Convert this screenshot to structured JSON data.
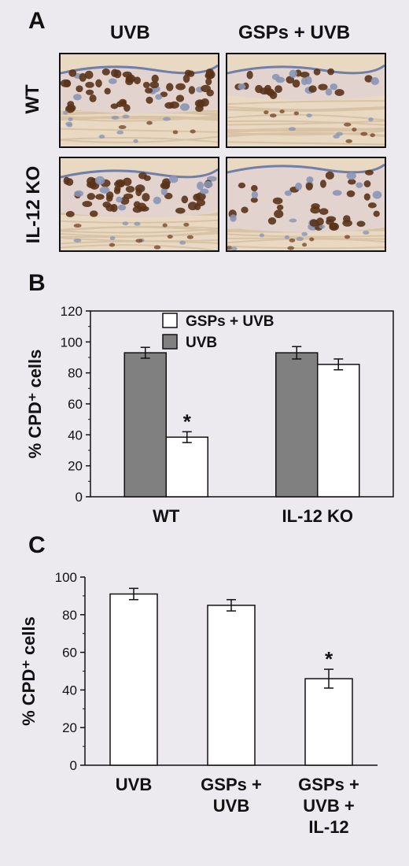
{
  "panel_a": {
    "letter": "A",
    "col_headers": [
      "UVB",
      "GSPs + UVB"
    ],
    "row_headers": [
      "WT",
      "IL-12 KO"
    ]
  },
  "panel_b": {
    "letter": "B"
  },
  "panel_c": {
    "letter": "C"
  },
  "colors": {
    "uvb_bar": "#808080",
    "gsp_bar": "#ffffff",
    "stroke": "#111111",
    "tissue": "#e9d9c2",
    "nucleus_dark": "#5a3318",
    "nucleus_light": "#8a95b5"
  },
  "chart_data": [
    {
      "type": "bar",
      "ylabel": "% CPD⁺ cells",
      "ylim": [
        0,
        120
      ],
      "yticks": [
        0,
        20,
        40,
        60,
        80,
        100,
        120
      ],
      "categories": [
        "WT",
        "IL-12 KO"
      ],
      "legend": {
        "placement": "top-center"
      },
      "series": [
        {
          "name": "UVB",
          "color": "#808080",
          "values": [
            93,
            93
          ],
          "errors": [
            3.5,
            4
          ]
        },
        {
          "name": "GSPs + UVB",
          "color": "#ffffff",
          "values": [
            38.5,
            85.5
          ],
          "errors": [
            3.5,
            3.5
          ]
        }
      ],
      "annotations": [
        {
          "text": "*",
          "category": "WT",
          "series": "GSPs + UVB"
        }
      ]
    },
    {
      "type": "bar",
      "ylabel": "% CPD⁺ cells",
      "ylim": [
        0,
        100
      ],
      "yticks": [
        0,
        20,
        40,
        60,
        80,
        100
      ],
      "categories": [
        [
          "UVB"
        ],
        [
          "GSPs +",
          "UVB"
        ],
        [
          "GSPs +",
          "UVB +",
          "IL-12"
        ]
      ],
      "series": [
        {
          "color": "#ffffff",
          "values": [
            91,
            85,
            46
          ],
          "errors": [
            3,
            3,
            5
          ]
        }
      ],
      "annotations": [
        {
          "text": "*",
          "category_index": 2
        }
      ]
    }
  ]
}
